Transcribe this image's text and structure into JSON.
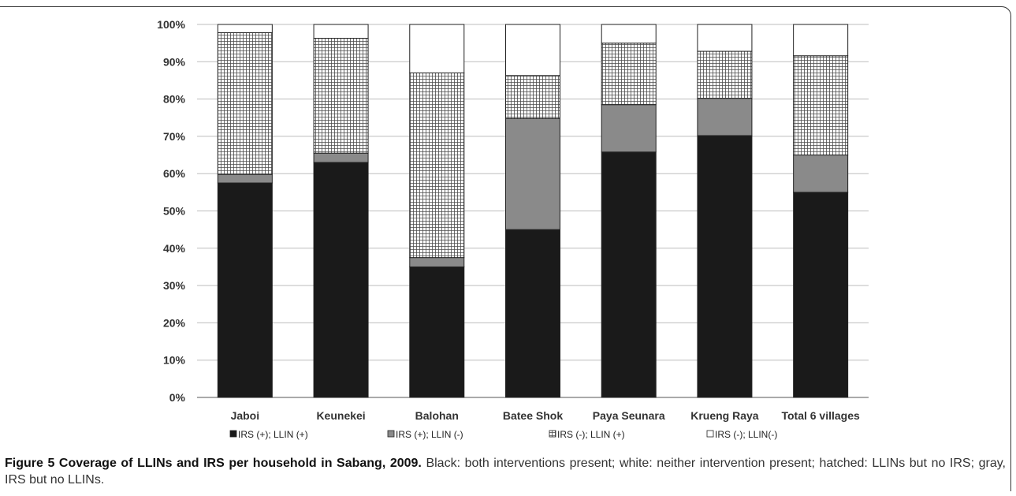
{
  "chart_data": {
    "type": "bar",
    "stacked": true,
    "percent": true,
    "categories": [
      "Jaboi",
      "Keunekei",
      "Balohan",
      "Batee Shok",
      "Paya Seunara",
      "Krueng Raya",
      "Total 6 villages"
    ],
    "series": [
      {
        "name": "IRS (+); LLIN (+)",
        "values": [
          57.5,
          63.0,
          35.0,
          45.0,
          65.8,
          70.2,
          55.0
        ],
        "color": "#1a1a1a",
        "pattern": "solid"
      },
      {
        "name": "IRS (+); LLIN (-)",
        "values": [
          2.3,
          2.5,
          2.5,
          29.8,
          12.7,
          10.0,
          10.0
        ],
        "color": "#8a8a8a",
        "pattern": "solid"
      },
      {
        "name": "IRS (-); LLIN (+)",
        "values": [
          38.0,
          30.8,
          49.5,
          11.5,
          16.5,
          12.6,
          26.6
        ],
        "color": "#ffffff",
        "pattern": "grid"
      },
      {
        "name": "IRS (-); LLIN(-)",
        "values": [
          2.2,
          3.7,
          13.0,
          13.7,
          5.0,
          7.2,
          8.4
        ],
        "color": "#ffffff",
        "pattern": "solid"
      }
    ],
    "legend_labels": [
      "IRS (+); LLIN (+)",
      "IRS (+); LLIN (-)",
      "IRS (-); LLIN (+)",
      "IRS (-); LLIN(-)"
    ],
    "legend_markers": [
      "■",
      "■",
      "⊞",
      "□"
    ],
    "y_ticks": [
      "0%",
      "10%",
      "20%",
      "30%",
      "40%",
      "50%",
      "60%",
      "70%",
      "80%",
      "90%",
      "100%"
    ],
    "ylim": [
      0,
      100
    ],
    "grid": true,
    "legend_position": "bottom"
  },
  "caption": {
    "label": "Figure 5 Coverage of LLINs and IRS per household in Sabang, 2009.",
    "text": " Black: both interventions present; white: neither intervention present; hatched: LLINs but no IRS; gray, IRS but no LLINs."
  }
}
